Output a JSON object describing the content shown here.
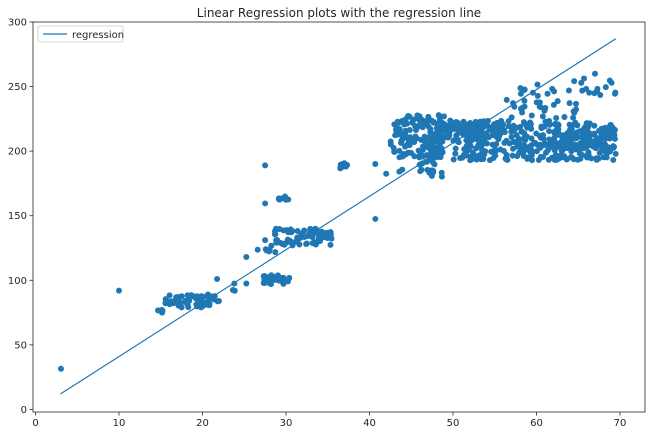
{
  "chart_data": {
    "type": "scatter",
    "title": "Linear Regression plots with the regression line",
    "xlabel": "",
    "ylabel": "",
    "xlim": [
      -0.3,
      73.0
    ],
    "ylim": [
      -2,
      300
    ],
    "xticks": [
      0,
      10,
      20,
      30,
      40,
      50,
      60,
      70
    ],
    "yticks": [
      0,
      50,
      100,
      150,
      200,
      250,
      300
    ],
    "grid": false,
    "legend": {
      "placement": "top-left",
      "entries": [
        "regression"
      ]
    },
    "colors": {
      "series": "#1f77b4",
      "axes": "#262626"
    },
    "series": [
      {
        "name": "regression",
        "kind": "line",
        "x": [
          3,
          69.5
        ],
        "y": [
          12,
          287
        ]
      },
      {
        "kind": "scatter",
        "clusters": [
          {
            "x": [
              2.8,
              3.3
            ],
            "y": [
              30,
              33
            ],
            "n": 1
          },
          {
            "x": [
              9.8,
              10.2
            ],
            "y": [
              91,
              93
            ],
            "n": 1
          },
          {
            "x": [
              14.5,
              15.5
            ],
            "y": [
              74,
              77
            ],
            "n": 5
          },
          {
            "x": [
              15.5,
              22.0
            ],
            "y": [
              79,
              89
            ],
            "n": 60
          },
          {
            "x": [
              21.5,
              22.0
            ],
            "y": [
              100,
              102
            ],
            "n": 1
          },
          {
            "x": [
              22.5,
              24.5
            ],
            "y": [
              91,
              98
            ],
            "n": 3
          },
          {
            "x": [
              25.0,
              25.5
            ],
            "y": [
              96,
              99
            ],
            "n": 1
          },
          {
            "x": [
              25.0,
              25.5
            ],
            "y": [
              117,
              119
            ],
            "n": 1
          },
          {
            "x": [
              26.5,
              28.5
            ],
            "y": [
              188,
              190
            ],
            "n": 1
          },
          {
            "x": [
              27.3,
              27.7
            ],
            "y": [
              158,
              161
            ],
            "n": 1
          },
          {
            "x": [
              27.0,
              30.5
            ],
            "y": [
              97,
              104
            ],
            "n": 30
          },
          {
            "x": [
              26.5,
              29.0
            ],
            "y": [
              118,
              132
            ],
            "n": 10
          },
          {
            "x": [
              28.5,
              35.5
            ],
            "y": [
              127,
              140
            ],
            "n": 70
          },
          {
            "x": [
              29.0,
              30.5
            ],
            "y": [
              162,
              167
            ],
            "n": 8
          },
          {
            "x": [
              36.5,
              37.5
            ],
            "y": [
              186,
              191
            ],
            "n": 10
          },
          {
            "x": [
              40.5,
              40.9
            ],
            "y": [
              146,
              149
            ],
            "n": 1
          },
          {
            "x": [
              40.5,
              40.9
            ],
            "y": [
              189,
              191
            ],
            "n": 1
          },
          {
            "x": [
              41.5,
              42.5
            ],
            "y": [
              181,
              184
            ],
            "n": 1
          },
          {
            "x": [
              43.5,
              44.5
            ],
            "y": [
              184,
              188
            ],
            "n": 2
          },
          {
            "x": [
              42.5,
              49.0
            ],
            "y": [
              195,
              228
            ],
            "n": 150
          },
          {
            "x": [
              46.0,
              49.0
            ],
            "y": [
              180,
              200
            ],
            "n": 25
          },
          {
            "x": [
              48.0,
              56.0
            ],
            "y": [
              210,
              224
            ],
            "n": 120
          },
          {
            "x": [
              50.0,
              69.5
            ],
            "y": [
              193,
              222
            ],
            "n": 350
          },
          {
            "x": [
              56.0,
              65.0
            ],
            "y": [
              220,
              240
            ],
            "n": 40
          },
          {
            "x": [
              58.0,
              65.0
            ],
            "y": [
              240,
              255
            ],
            "n": 12
          },
          {
            "x": [
              62.0,
              69.5
            ],
            "y": [
              205,
              215
            ],
            "n": 50
          },
          {
            "x": [
              65.0,
              69.5
            ],
            "y": [
              240,
              260
            ],
            "n": 15
          }
        ]
      }
    ]
  }
}
